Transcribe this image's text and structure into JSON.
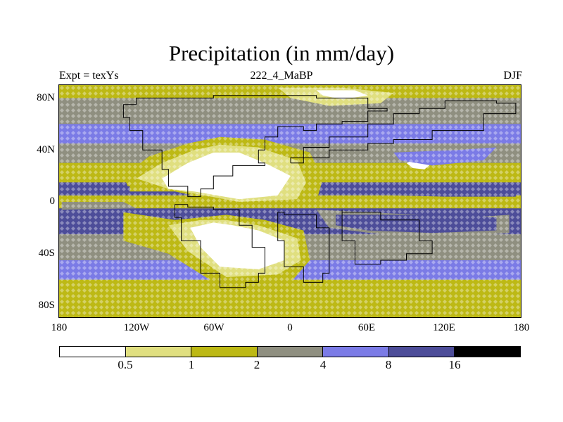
{
  "title": "Precipitation (in mm/day)",
  "subtitle_left": "Expt = texYs",
  "subtitle_center": "222_4_MaBP",
  "subtitle_right": "DJF",
  "latitude_labels": [
    "80N",
    "40N",
    "0",
    "40S",
    "80S"
  ],
  "longitude_labels": [
    "180",
    "120W",
    "60W",
    "0",
    "60E",
    "120E",
    "180"
  ],
  "legend": {
    "colors": [
      "#ffffff",
      "#e0df80",
      "#bdb915",
      "#8f8f80",
      "#7b7be6",
      "#4d4d99",
      "#000000"
    ],
    "labels": [
      "0.5",
      "1",
      "2",
      "4",
      "8",
      "16"
    ]
  },
  "chart_data": {
    "type": "heatmap",
    "title": "Precipitation (in mm/day)",
    "projection": "cylindrical-equidistant",
    "lon_range": [
      -180,
      180
    ],
    "lat_range": [
      -90,
      90
    ],
    "contour_levels": [
      0.5,
      1,
      2,
      4,
      8,
      16
    ],
    "zonal_bands_approx_mm_per_day": [
      {
        "lat_range": [
          80,
          90
        ],
        "value": 1.5
      },
      {
        "lat_range": [
          60,
          80
        ],
        "value": 3
      },
      {
        "lat_range": [
          45,
          60
        ],
        "value": 6
      },
      {
        "lat_range": [
          30,
          45
        ],
        "value": 3
      },
      {
        "lat_range": [
          15,
          30
        ],
        "value": 1.5
      },
      {
        "lat_range": [
          5,
          15
        ],
        "value": 9
      },
      {
        "lat_range": [
          -5,
          5
        ],
        "value": 1.5
      },
      {
        "lat_range": [
          -25,
          -5
        ],
        "value": 12
      },
      {
        "lat_range": [
          -45,
          -25
        ],
        "value": 3
      },
      {
        "lat_range": [
          -60,
          -45
        ],
        "value": 6
      },
      {
        "lat_range": [
          -90,
          -60
        ],
        "value": 1.5
      }
    ],
    "dry_regions_below_0_5": [
      {
        "name_hint": "north",
        "lon": -60,
        "lat": 20
      },
      {
        "name_hint": "south",
        "lon": -40,
        "lat": -30
      }
    ]
  }
}
